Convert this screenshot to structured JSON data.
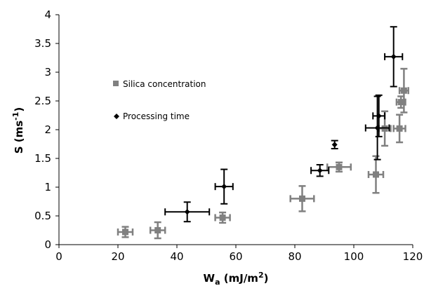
{
  "chart_data": {
    "type": "scatter",
    "title": "",
    "xlabel": {
      "main": "W",
      "sub": "a",
      "units_pre": " (mJ/m",
      "units_sup": "2",
      "units_post": ")"
    },
    "ylabel": {
      "main": "S (ms",
      "sup": "-1",
      "post": ")"
    },
    "xlim": [
      0,
      120
    ],
    "ylim": [
      0,
      4
    ],
    "x_ticks": [
      "0",
      "20",
      "40",
      "60",
      "80",
      "100",
      "120"
    ],
    "y_ticks": [
      "0",
      "0.5",
      "1",
      "1.5",
      "2",
      "2.5",
      "3",
      "3.5",
      "4"
    ],
    "grid": false,
    "legend_position": "left-center",
    "series": [
      {
        "name": "Silica concentration",
        "marker": "square",
        "color": "#808080",
        "points": [
          {
            "x": 22.5,
            "y": 0.22,
            "xerr": 2.5,
            "yerr": 0.09
          },
          {
            "x": 33.5,
            "y": 0.25,
            "xerr": 2.5,
            "yerr": 0.14
          },
          {
            "x": 55.5,
            "y": 0.47,
            "xerr": 2.5,
            "yerr": 0.09
          },
          {
            "x": 82.5,
            "y": 0.8,
            "xerr": 4.0,
            "yerr": 0.22
          },
          {
            "x": 95.0,
            "y": 1.35,
            "xerr": 4.0,
            "yerr": 0.08
          },
          {
            "x": 107.5,
            "y": 1.22,
            "xerr": 2.5,
            "yerr": 0.32
          },
          {
            "x": 110.5,
            "y": 2.02,
            "xerr": 2.0,
            "yerr": 0.3
          },
          {
            "x": 115.5,
            "y": 2.02,
            "xerr": 2.0,
            "yerr": 0.24
          },
          {
            "x": 116.0,
            "y": 2.48,
            "xerr": 1.5,
            "yerr": 0.1
          },
          {
            "x": 117.0,
            "y": 2.68,
            "xerr": 1.5,
            "yerr": 0.38
          }
        ]
      },
      {
        "name": "Processing time",
        "marker": "diamond",
        "color": "#000000",
        "points": [
          {
            "x": 43.5,
            "y": 0.57,
            "xerr": 7.5,
            "yerr": 0.17
          },
          {
            "x": 56.0,
            "y": 1.01,
            "xerr": 3.0,
            "yerr": 0.3
          },
          {
            "x": 88.5,
            "y": 1.29,
            "xerr": 3.0,
            "yerr": 0.1
          },
          {
            "x": 93.5,
            "y": 1.74,
            "xerr": 0.0,
            "yerr": 0.07
          },
          {
            "x": 108.0,
            "y": 2.03,
            "xerr": 4.0,
            "yerr": 0.55
          },
          {
            "x": 108.5,
            "y": 2.24,
            "xerr": 2.0,
            "yerr": 0.36
          },
          {
            "x": 113.5,
            "y": 3.27,
            "xerr": 3.0,
            "yerr": 0.52
          }
        ]
      }
    ]
  }
}
